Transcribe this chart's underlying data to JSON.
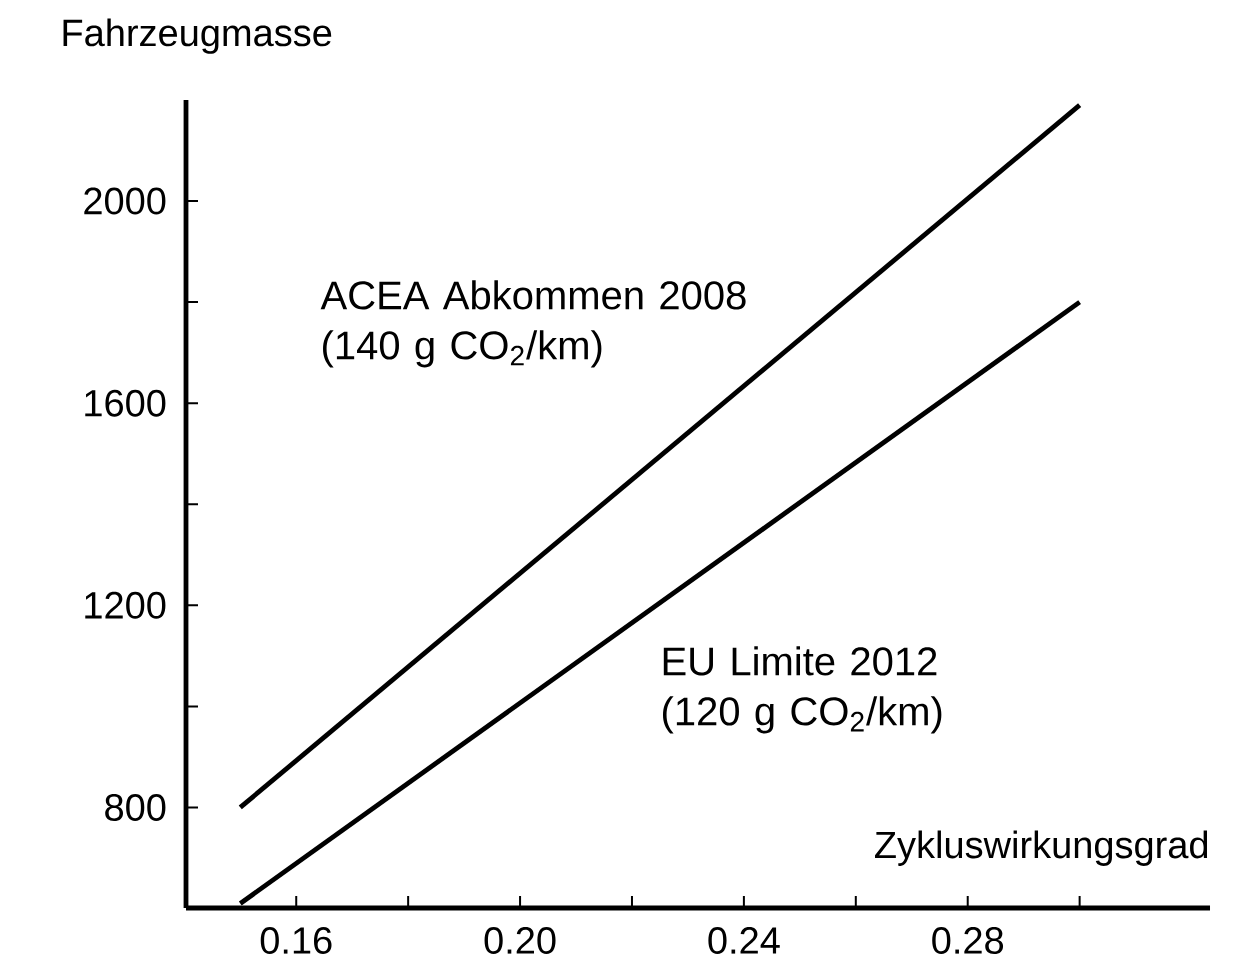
{
  "chart_data": {
    "type": "line",
    "xlabel": "Zykluswirkungsgrad",
    "ylabel": "Fahrzeugmasse",
    "xlim": [
      0.1403,
      0.3233
    ],
    "ylim": [
      601,
      2200
    ],
    "xticks": [
      0.16,
      {
        "value": 0.18,
        "label": null
      },
      {
        "value": 0.2,
        "label": "0.20"
      },
      {
        "value": 0.22,
        "label": null
      },
      0.24,
      {
        "value": 0.26,
        "label": null
      },
      0.28,
      {
        "value": 0.3,
        "label": null
      }
    ],
    "yticks": [
      800,
      {
        "value": 1000,
        "label": null
      },
      1200,
      {
        "value": 1400,
        "label": null
      },
      1600,
      {
        "value": 1800,
        "label": null
      },
      2000
    ],
    "x": [
      0.15,
      0.3
    ],
    "series": [
      {
        "name": "ACEA Abkommen 2008 (140 g CO$_{2}$/km)",
        "color": "#000000",
        "values": [
          800,
          2190
        ]
      },
      {
        "name": "EU Limite 2012 (120 g CO$_{2}$/km)",
        "color": "#000000",
        "values": [
          610,
          1800
        ]
      }
    ],
    "grid": false,
    "legend": false,
    "marker": "none",
    "line_style": "solid"
  }
}
